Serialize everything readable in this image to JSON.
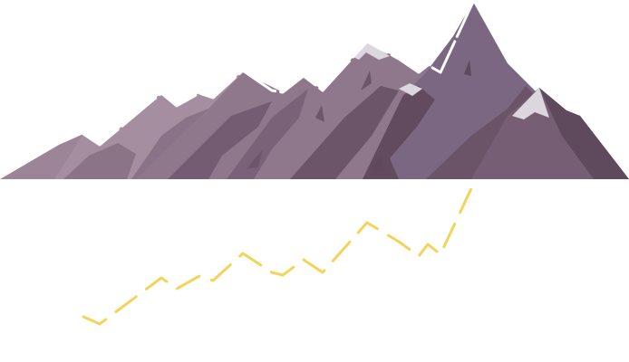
{
  "scene": {
    "subject": "mountain-range-illustration",
    "reflection_path": "dashed-trail-line",
    "colors": {
      "background": "#ffffff",
      "far_ridge": "#a48e9f",
      "mid_ridge": "#8f788c",
      "main_peak": "#7b6782",
      "shadow": "#624b5f",
      "snow": "#dcd6de",
      "ridge_outline": "#ffffff",
      "trail": "#f2d45a"
    }
  }
}
